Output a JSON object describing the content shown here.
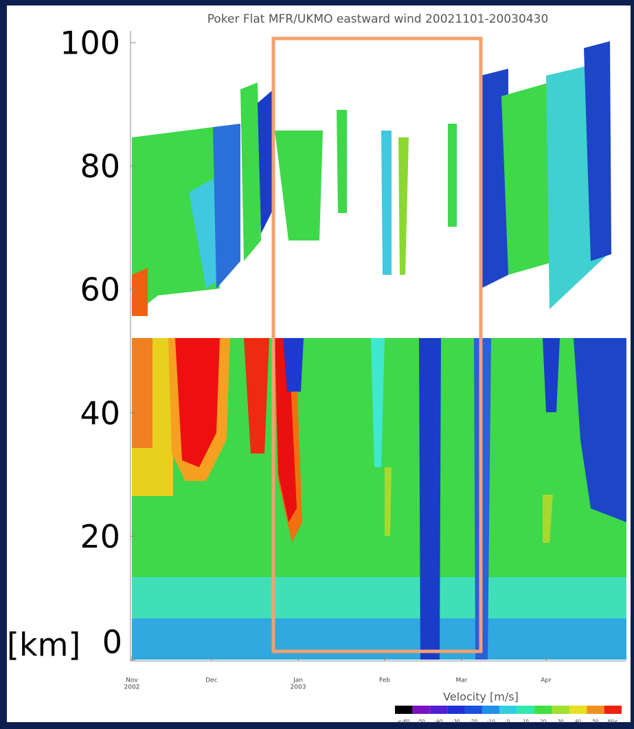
{
  "chart_data": {
    "type": "contour",
    "title": "Poker Flat MFR/UKMO eastward wind   20021101-20030430",
    "y_unit": "[km]",
    "ylim": [
      0,
      100
    ],
    "yticks": [
      0,
      20,
      40,
      60,
      80,
      100
    ],
    "x_labels": [
      [
        "Nov",
        "2002"
      ],
      [
        "Dec"
      ],
      [
        "Jan",
        "2003"
      ],
      [
        "Feb"
      ],
      [
        "Mar"
      ],
      [
        "Apr"
      ]
    ],
    "colorbar_title": "Velocity [m/s]",
    "colorbar_labels": [
      "<-60",
      "-50",
      "-40",
      "-30",
      "-20",
      "-10",
      "0",
      "10",
      "20",
      "30",
      "40",
      "50",
      "60<"
    ]
  }
}
